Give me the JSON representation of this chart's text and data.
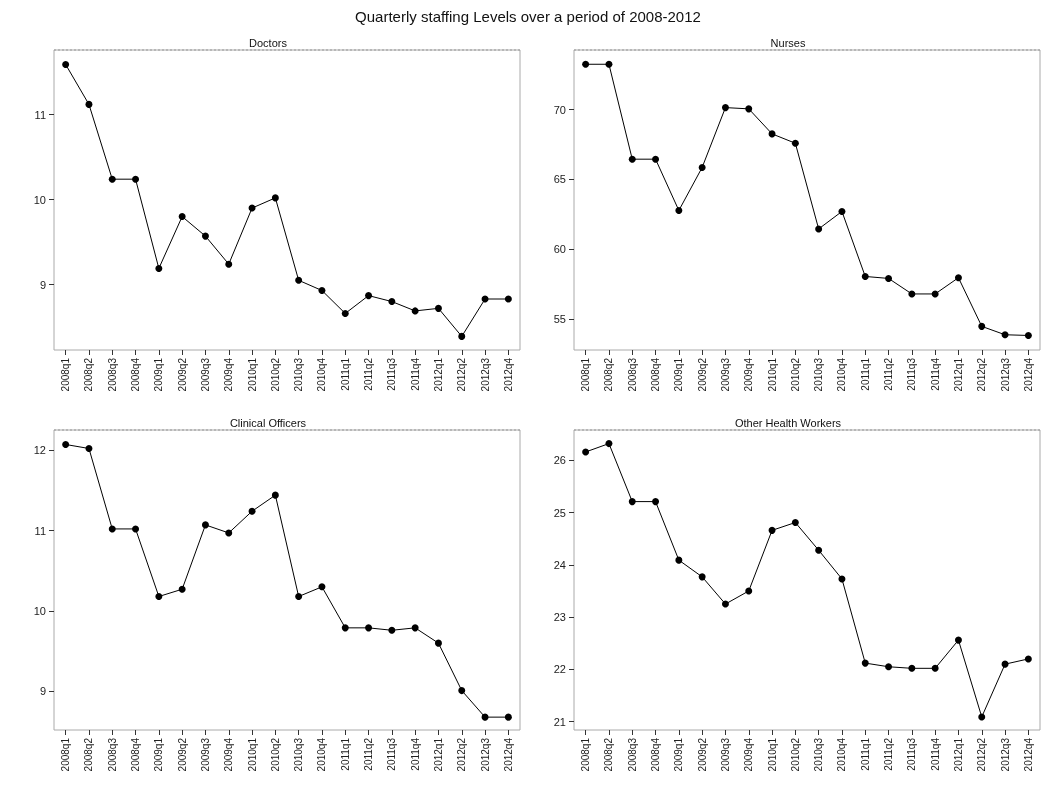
{
  "chart_data": [
    {
      "type": "line",
      "title": "Doctors",
      "annotations": [
        "Quarterly staffing Levels over a period of 2008-2012"
      ],
      "categories": [
        "2008q1",
        "2008q2",
        "2008q3",
        "2008q4",
        "2009q1",
        "2009q2",
        "2009q3",
        "2009q4",
        "2010q1",
        "2010q2",
        "2010q3",
        "2010q4",
        "2011q1",
        "2011q2",
        "2011q3",
        "2011q4",
        "2012q1",
        "2012q2",
        "2012q3",
        "2012q4"
      ],
      "series": [
        {
          "color": "#000000",
          "values": [
            11.59,
            11.12,
            10.24,
            10.24,
            9.19,
            9.8,
            9.57,
            9.24,
            9.9,
            10.02,
            9.05,
            8.93,
            8.66,
            8.87,
            8.8,
            8.69,
            8.72,
            8.39,
            8.83,
            8.83
          ]
        }
      ],
      "ylim": [
        8.23,
        11.76
      ],
      "yticks": [
        9,
        10,
        11
      ],
      "grid": false,
      "marker": "circle",
      "line_style": "solid"
    },
    {
      "type": "line",
      "title": "Nurses",
      "categories": [
        "2008q1",
        "2008q2",
        "2008q3",
        "2008q4",
        "2009q1",
        "2009q2",
        "2009q3",
        "2009q4",
        "2010q1",
        "2010q2",
        "2010q3",
        "2010q4",
        "2011q1",
        "2011q2",
        "2011q3",
        "2011q4",
        "2012q1",
        "2012q2",
        "2012q3",
        "2012q4"
      ],
      "series": [
        {
          "color": "#000000",
          "values": [
            73.24,
            73.24,
            66.45,
            66.45,
            62.78,
            65.86,
            70.14,
            70.05,
            68.26,
            67.59,
            61.46,
            62.71,
            58.06,
            57.92,
            56.81,
            56.81,
            57.97,
            54.49,
            53.89,
            53.84
          ]
        }
      ],
      "ylim": [
        52.8,
        74.26
      ],
      "yticks": [
        55,
        60,
        65,
        70
      ],
      "grid": false,
      "marker": "circle",
      "line_style": "solid"
    },
    {
      "type": "line",
      "title": "Clinical Officers",
      "categories": [
        "2008q1",
        "2008q2",
        "2008q3",
        "2008q4",
        "2009q1",
        "2009q2",
        "2009q3",
        "2009q4",
        "2010q1",
        "2010q2",
        "2010q3",
        "2010q4",
        "2011q1",
        "2011q2",
        "2011q3",
        "2011q4",
        "2012q1",
        "2012q2",
        "2012q3",
        "2012q4"
      ],
      "series": [
        {
          "color": "#000000",
          "values": [
            12.07,
            12.02,
            11.02,
            11.02,
            10.18,
            10.27,
            11.07,
            10.97,
            11.24,
            11.44,
            10.18,
            10.3,
            9.79,
            9.79,
            9.76,
            9.79,
            9.6,
            9.01,
            8.68,
            8.68
          ]
        }
      ],
      "ylim": [
        8.52,
        12.25
      ],
      "yticks": [
        9,
        10,
        11,
        12
      ],
      "grid": false,
      "marker": "circle",
      "line_style": "solid"
    },
    {
      "type": "line",
      "title": "Other Health Workers",
      "categories": [
        "2008q1",
        "2008q2",
        "2008q3",
        "2008q4",
        "2009q1",
        "2009q2",
        "2009q3",
        "2009q4",
        "2010q1",
        "2010q2",
        "2010q3",
        "2010q4",
        "2011q1",
        "2011q2",
        "2011q3",
        "2011q4",
        "2012q1",
        "2012q2",
        "2012q3",
        "2012q4"
      ],
      "series": [
        {
          "color": "#000000",
          "values": [
            26.16,
            26.32,
            25.21,
            25.21,
            24.09,
            23.77,
            23.25,
            23.5,
            24.66,
            24.81,
            24.28,
            23.73,
            22.12,
            22.05,
            22.02,
            22.02,
            22.56,
            21.09,
            22.1,
            22.2
          ]
        }
      ],
      "ylim": [
        20.84,
        26.58
      ],
      "yticks": [
        21,
        22,
        23,
        24,
        25,
        26
      ],
      "grid": false,
      "marker": "circle",
      "line_style": "solid"
    }
  ]
}
